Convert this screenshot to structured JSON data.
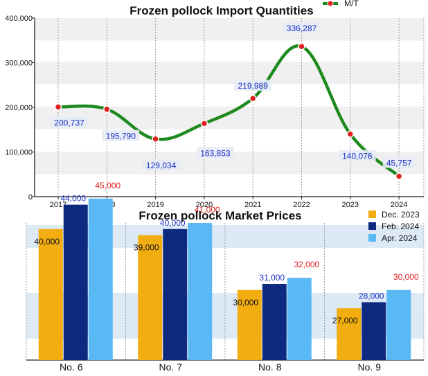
{
  "chart_data": [
    {
      "type": "line",
      "title": "Frozen pollock Import Quantities",
      "legend": {
        "entries": [
          "M/T"
        ],
        "placement": "top-right"
      },
      "x": [
        "2017",
        "2018",
        "2019",
        "2020",
        "2021",
        "2022",
        "2023",
        "2024"
      ],
      "series": [
        {
          "name": "M/T",
          "values": [
            200737,
            195790,
            129034,
            163853,
            219989,
            336287,
            140076,
            45757
          ]
        }
      ],
      "data_labels": [
        "200,737",
        "195,790",
        "129,034",
        "163,853",
        "219,989",
        "336,287",
        "140,076",
        "45,757"
      ],
      "y_ticks": [
        "0",
        "100,000",
        "200,000",
        "300,000",
        "400,000"
      ],
      "ylim": [
        0,
        400000
      ],
      "colors": {
        "line": "#1e8a1e",
        "marker": "#e02020",
        "label": "#1a2fc8"
      }
    },
    {
      "type": "bar",
      "title": "Frozen pollock Market Prices",
      "categories": [
        "No. 6",
        "No. 7",
        "No. 8",
        "No. 9"
      ],
      "series": [
        {
          "name": "Dec. 2023",
          "values": [
            40000,
            39000,
            30000,
            27000
          ],
          "labels": [
            "40,000",
            "39,000",
            "30,000",
            "27,000"
          ],
          "color": "#f2ad11",
          "label_color": "#111111"
        },
        {
          "name": "Feb. 2024",
          "values": [
            44000,
            40000,
            31000,
            28000
          ],
          "labels": [
            "44,000",
            "40,000",
            "31,000",
            "28,000"
          ],
          "color": "#0d2a80",
          "label_color": "#1a2fc8"
        },
        {
          "name": "Apr. 2024",
          "values": [
            45000,
            41000,
            32000,
            30000
          ],
          "labels": [
            "45,000",
            "41,000",
            "32,000",
            "30,000"
          ],
          "color": "#5ab8f5",
          "label_color": "#e02020"
        }
      ],
      "legend": {
        "placement": "top-right"
      }
    }
  ]
}
